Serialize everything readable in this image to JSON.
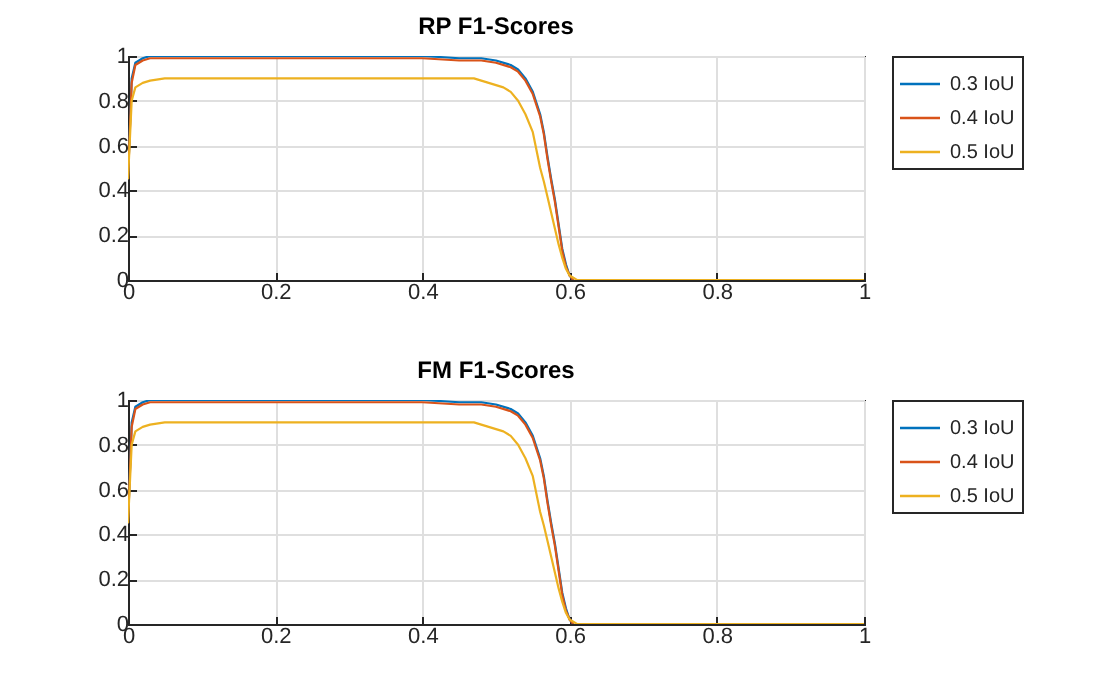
{
  "chart_data": [
    {
      "type": "line",
      "title": "RP F1-Scores",
      "xlim": [
        0,
        1
      ],
      "xticks": [
        0,
        0.2,
        0.4,
        0.6,
        0.8,
        1
      ],
      "ylim": [
        0,
        1
      ],
      "yticks": [
        0,
        0.2,
        0.4,
        0.6,
        0.8,
        1
      ],
      "grid": true,
      "legend": "top right",
      "series": [
        {
          "name": "0.3 IoU",
          "color": "#0072bd",
          "x": [
            0,
            0.005,
            0.01,
            0.02,
            0.03,
            0.05,
            0.1,
            0.2,
            0.3,
            0.4,
            0.45,
            0.48,
            0.5,
            0.52,
            0.53,
            0.54,
            0.55,
            0.56,
            0.565,
            0.57,
            0.575,
            0.58,
            0.585,
            0.59,
            0.595,
            0.6,
            0.605
          ],
          "values": [
            0.45,
            0.9,
            0.97,
            0.99,
            1,
            1,
            1,
            1,
            1,
            1,
            0.99,
            0.99,
            0.98,
            0.96,
            0.94,
            0.9,
            0.84,
            0.74,
            0.66,
            0.55,
            0.45,
            0.36,
            0.25,
            0.14,
            0.07,
            0.02,
            0
          ]
        },
        {
          "name": "0.4 IoU",
          "color": "#d95319",
          "x": [
            0,
            0.005,
            0.01,
            0.02,
            0.03,
            0.05,
            0.1,
            0.2,
            0.3,
            0.4,
            0.45,
            0.48,
            0.5,
            0.52,
            0.53,
            0.54,
            0.55,
            0.56,
            0.565,
            0.57,
            0.575,
            0.58,
            0.585,
            0.59,
            0.595,
            0.6,
            0.605
          ],
          "values": [
            0.45,
            0.88,
            0.96,
            0.98,
            0.99,
            0.99,
            0.99,
            0.99,
            0.99,
            0.99,
            0.98,
            0.98,
            0.97,
            0.95,
            0.93,
            0.89,
            0.83,
            0.73,
            0.65,
            0.54,
            0.44,
            0.35,
            0.24,
            0.13,
            0.06,
            0.02,
            0
          ]
        },
        {
          "name": "0.5 IoU",
          "color": "#edb120",
          "x": [
            0,
            0.005,
            0.01,
            0.02,
            0.03,
            0.05,
            0.1,
            0.2,
            0.3,
            0.4,
            0.45,
            0.47,
            0.49,
            0.51,
            0.52,
            0.53,
            0.54,
            0.55,
            0.56,
            0.565,
            0.57,
            0.575,
            0.58,
            0.585,
            0.59,
            0.595,
            0.6,
            0.61,
            0.7,
            0.8,
            0.9,
            1
          ],
          "values": [
            0.45,
            0.8,
            0.86,
            0.88,
            0.89,
            0.9,
            0.9,
            0.9,
            0.9,
            0.9,
            0.9,
            0.9,
            0.88,
            0.86,
            0.84,
            0.8,
            0.74,
            0.66,
            0.5,
            0.44,
            0.37,
            0.3,
            0.23,
            0.16,
            0.1,
            0.05,
            0.02,
            0,
            0,
            0,
            0,
            0
          ]
        }
      ]
    },
    {
      "type": "line",
      "title": "FM F1-Scores",
      "xlim": [
        0,
        1
      ],
      "xticks": [
        0,
        0.2,
        0.4,
        0.6,
        0.8,
        1
      ],
      "ylim": [
        0,
        1
      ],
      "yticks": [
        0,
        0.2,
        0.4,
        0.6,
        0.8,
        1
      ],
      "grid": true,
      "legend": "top right",
      "series": [
        {
          "name": "0.3 IoU",
          "color": "#0072bd",
          "x": [
            0,
            0.005,
            0.01,
            0.02,
            0.03,
            0.05,
            0.1,
            0.2,
            0.3,
            0.4,
            0.45,
            0.48,
            0.5,
            0.52,
            0.53,
            0.54,
            0.55,
            0.56,
            0.565,
            0.57,
            0.575,
            0.58,
            0.585,
            0.59,
            0.595,
            0.6,
            0.605
          ],
          "values": [
            0.45,
            0.9,
            0.97,
            0.99,
            1,
            1,
            1,
            1,
            1,
            1,
            0.99,
            0.99,
            0.98,
            0.96,
            0.94,
            0.9,
            0.84,
            0.74,
            0.66,
            0.55,
            0.45,
            0.36,
            0.25,
            0.14,
            0.07,
            0.02,
            0
          ]
        },
        {
          "name": "0.4 IoU",
          "color": "#d95319",
          "x": [
            0,
            0.005,
            0.01,
            0.02,
            0.03,
            0.05,
            0.1,
            0.2,
            0.3,
            0.4,
            0.45,
            0.48,
            0.5,
            0.52,
            0.53,
            0.54,
            0.55,
            0.56,
            0.565,
            0.57,
            0.575,
            0.58,
            0.585,
            0.59,
            0.595,
            0.6,
            0.605
          ],
          "values": [
            0.45,
            0.88,
            0.96,
            0.98,
            0.99,
            0.99,
            0.99,
            0.99,
            0.99,
            0.99,
            0.98,
            0.98,
            0.97,
            0.95,
            0.93,
            0.89,
            0.83,
            0.73,
            0.65,
            0.54,
            0.44,
            0.35,
            0.24,
            0.13,
            0.06,
            0.02,
            0
          ]
        },
        {
          "name": "0.5 IoU",
          "color": "#edb120",
          "x": [
            0,
            0.005,
            0.01,
            0.02,
            0.03,
            0.05,
            0.1,
            0.2,
            0.3,
            0.4,
            0.45,
            0.47,
            0.49,
            0.51,
            0.52,
            0.53,
            0.54,
            0.55,
            0.56,
            0.565,
            0.57,
            0.575,
            0.58,
            0.585,
            0.59,
            0.595,
            0.6,
            0.61,
            0.7,
            0.8,
            0.9,
            1
          ],
          "values": [
            0.45,
            0.8,
            0.86,
            0.88,
            0.89,
            0.9,
            0.9,
            0.9,
            0.9,
            0.9,
            0.9,
            0.9,
            0.88,
            0.86,
            0.84,
            0.8,
            0.74,
            0.66,
            0.5,
            0.44,
            0.37,
            0.3,
            0.23,
            0.16,
            0.1,
            0.05,
            0.02,
            0,
            0,
            0,
            0,
            0
          ]
        }
      ]
    }
  ]
}
